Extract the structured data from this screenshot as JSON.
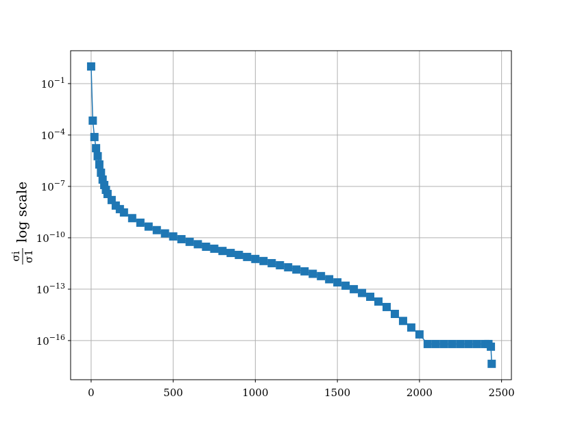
{
  "chart_data": {
    "type": "line",
    "yscale": "log",
    "grid": true,
    "color": "#1f77b4",
    "marker": "square",
    "ylabel": {
      "numerator": "σi",
      "denominator": "σ1",
      "text": "log scale"
    },
    "x": [
      0,
      10,
      20,
      30,
      40,
      50,
      60,
      70,
      80,
      90,
      100,
      125,
      150,
      175,
      200,
      250,
      300,
      350,
      400,
      450,
      500,
      550,
      600,
      650,
      700,
      750,
      800,
      850,
      900,
      950,
      1000,
      1050,
      1100,
      1150,
      1200,
      1250,
      1300,
      1350,
      1400,
      1450,
      1500,
      1550,
      1600,
      1650,
      1700,
      1750,
      1800,
      1850,
      1900,
      1950,
      2000,
      2050,
      2100,
      2150,
      2200,
      2250,
      2300,
      2350,
      2400,
      2420,
      2435,
      2440
    ],
    "values": [
      1,
      0.00069,
      7.6e-05,
      1.7e-05,
      5.8e-06,
      1.9e-06,
      6.3e-07,
      2.5e-07,
      1.2e-07,
      6.3e-08,
      3.6e-08,
      1.6e-08,
      7.6e-09,
      4.7e-09,
      3e-09,
      1.4e-09,
      7.6e-10,
      4.5e-10,
      2.8e-10,
      1.8e-10,
      1.2e-10,
      8.3e-11,
      5.8e-11,
      4.2e-11,
      3e-11,
      2.3e-11,
      1.7e-11,
      1.3e-11,
      1e-11,
      7.6e-12,
      5.8e-12,
      4.4e-12,
      3.3e-12,
      2.5e-12,
      1.9e-12,
      1.4e-12,
      1.1e-12,
      7.9e-13,
      5.8e-13,
      3.8e-13,
      2.5e-13,
      1.6e-13,
      1e-13,
      6e-14,
      3.6e-14,
      1.9e-14,
      9.1e-15,
      3.6e-15,
      1.4e-15,
      5.8e-16,
      2.3e-16,
      6.3e-17,
      6.3e-17,
      6.3e-17,
      6.3e-17,
      6.3e-17,
      6.3e-17,
      6.3e-17,
      6.3e-17,
      6.3e-17,
      4.4e-17,
      4.4e-18
    ],
    "xlim": [
      -125,
      2560
    ],
    "ylim": [
      5.2e-19,
      8.3
    ],
    "xticks": [
      0,
      500,
      1000,
      1500,
      2000,
      2500
    ],
    "yticks": [
      {
        "value": 0.1,
        "label": "10−1"
      },
      {
        "value": 0.0001,
        "label": "10−4"
      },
      {
        "value": 1e-07,
        "label": "10−7"
      },
      {
        "value": 1e-10,
        "label": "10−10"
      },
      {
        "value": 1e-13,
        "label": "10−13"
      },
      {
        "value": 1e-16,
        "label": "10−16"
      }
    ]
  }
}
